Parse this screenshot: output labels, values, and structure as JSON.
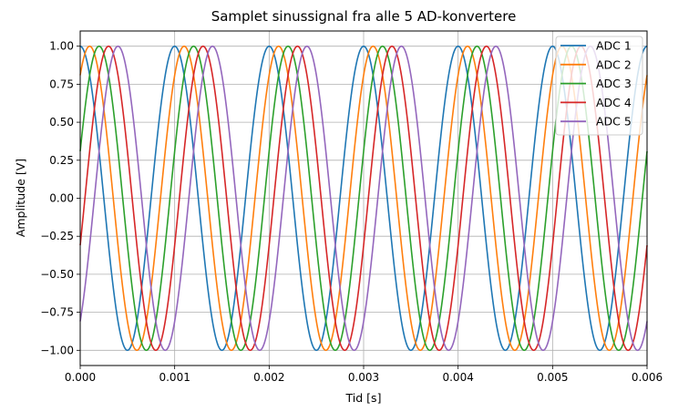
{
  "chart_data": {
    "type": "line",
    "title": "Samplet sinussignal fra alle 5 AD-konvertere",
    "xlabel": "Tid [s]",
    "ylabel": "Amplitude [V]",
    "xlim": [
      0,
      0.006
    ],
    "ylim": [
      -1.1,
      1.1
    ],
    "x_ticks": [
      "0.000",
      "0.001",
      "0.002",
      "0.003",
      "0.004",
      "0.005",
      "0.006"
    ],
    "y_ticks": [
      "1.00",
      "0.75",
      "0.50",
      "0.25",
      "0.00",
      "−0.25",
      "−0.50",
      "−0.75",
      "−1.00"
    ],
    "grid": true,
    "legend_position": "top-right",
    "signal": {
      "function": "cosine",
      "frequency_hz": 1000,
      "amplitude": 1.0
    },
    "series": [
      {
        "name": "ADC 1",
        "color": "#1f77b4",
        "phase_delay_s": 0.0
      },
      {
        "name": "ADC 2",
        "color": "#ff7f0e",
        "phase_delay_s": 0.0001
      },
      {
        "name": "ADC 3",
        "color": "#2ca02c",
        "phase_delay_s": 0.0002
      },
      {
        "name": "ADC 4",
        "color": "#d62728",
        "phase_delay_s": 0.0003
      },
      {
        "name": "ADC 5",
        "color": "#9467bd",
        "phase_delay_s": 0.0004
      }
    ]
  }
}
